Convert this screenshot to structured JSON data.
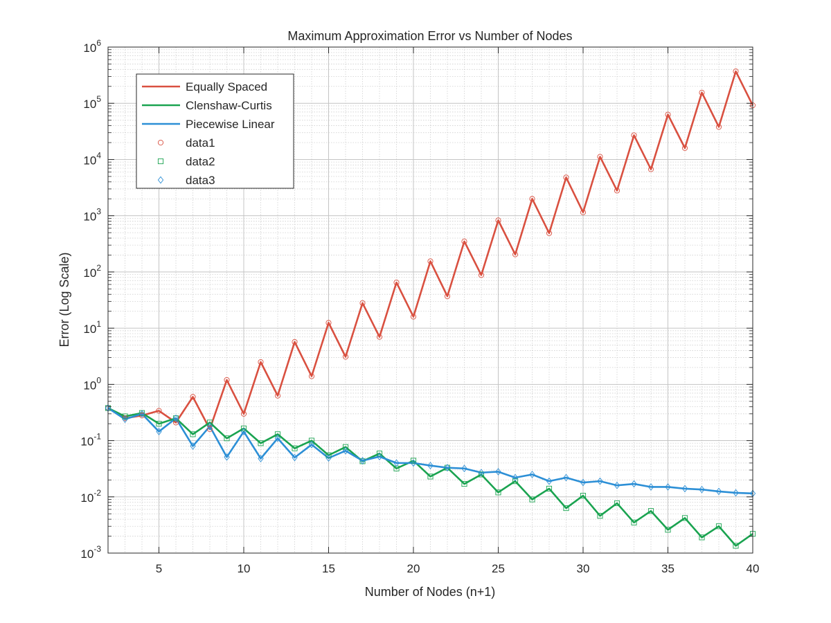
{
  "chart_data": {
    "type": "line",
    "title": "Maximum Approximation Error vs Number of Nodes",
    "xlabel": "Number of Nodes (n+1)",
    "ylabel": "Error (Log Scale)",
    "xlim": [
      2,
      40
    ],
    "ylim": [
      0.001,
      1000000
    ],
    "yscale": "log",
    "grid": true,
    "minor_grid": true,
    "legend_position": "top-left",
    "x_ticks": [
      5,
      10,
      15,
      20,
      25,
      30,
      35,
      40
    ],
    "x_tick_labels": [
      "5",
      "10",
      "15",
      "20",
      "25",
      "30",
      "35",
      "40"
    ],
    "y_ticks": [
      0.001,
      0.01,
      0.1,
      1,
      10,
      100,
      1000,
      10000,
      100000,
      1000000
    ],
    "y_tick_labels": [
      {
        "base": "10",
        "exp": "-3"
      },
      {
        "base": "10",
        "exp": "-2"
      },
      {
        "base": "10",
        "exp": "-1"
      },
      {
        "base": "10",
        "exp": "0"
      },
      {
        "base": "10",
        "exp": "1"
      },
      {
        "base": "10",
        "exp": "2"
      },
      {
        "base": "10",
        "exp": "3"
      },
      {
        "base": "10",
        "exp": "4"
      },
      {
        "base": "10",
        "exp": "5"
      },
      {
        "base": "10",
        "exp": "6"
      }
    ],
    "x": [
      2,
      3,
      4,
      5,
      6,
      7,
      8,
      9,
      10,
      11,
      12,
      13,
      14,
      15,
      16,
      17,
      18,
      19,
      20,
      21,
      22,
      23,
      24,
      25,
      26,
      27,
      28,
      29,
      30,
      31,
      32,
      33,
      34,
      35,
      36,
      37,
      38,
      39,
      40
    ],
    "series": [
      {
        "name": "Equally Spaced",
        "marker_name": "data1",
        "color": "#d95040",
        "marker": "circle",
        "values": [
          0.38,
          0.25,
          0.28,
          0.34,
          0.21,
          0.6,
          0.16,
          1.2,
          0.3,
          2.5,
          0.63,
          5.7,
          1.4,
          12.5,
          3.1,
          28,
          7.0,
          65,
          16,
          155,
          37,
          350,
          88,
          830,
          205,
          2000,
          490,
          4800,
          1150,
          11200,
          2800,
          27000,
          6700,
          63000,
          16000,
          155000,
          38000,
          370000,
          92000
        ]
      },
      {
        "name": "Clenshaw-Curtis",
        "marker_name": "data2",
        "color": "#1aa350",
        "marker": "square",
        "values": [
          0.38,
          0.27,
          0.31,
          0.2,
          0.25,
          0.13,
          0.21,
          0.11,
          0.165,
          0.09,
          0.13,
          0.073,
          0.1,
          0.055,
          0.077,
          0.043,
          0.059,
          0.032,
          0.044,
          0.023,
          0.033,
          0.017,
          0.025,
          0.012,
          0.019,
          0.009,
          0.014,
          0.0063,
          0.0105,
          0.0046,
          0.0077,
          0.0035,
          0.0056,
          0.0026,
          0.0042,
          0.0019,
          0.003,
          0.00135,
          0.0022
        ]
      },
      {
        "name": "Piecewise Linear",
        "marker_name": "data3",
        "color": "#2c8fd6",
        "marker": "diamond",
        "values": [
          0.38,
          0.24,
          0.3,
          0.145,
          0.25,
          0.08,
          0.18,
          0.051,
          0.145,
          0.048,
          0.11,
          0.05,
          0.085,
          0.049,
          0.066,
          0.044,
          0.052,
          0.04,
          0.04,
          0.036,
          0.033,
          0.032,
          0.027,
          0.028,
          0.022,
          0.025,
          0.019,
          0.022,
          0.018,
          0.019,
          0.016,
          0.017,
          0.015,
          0.015,
          0.014,
          0.0135,
          0.0125,
          0.0118,
          0.0115
        ]
      }
    ]
  }
}
